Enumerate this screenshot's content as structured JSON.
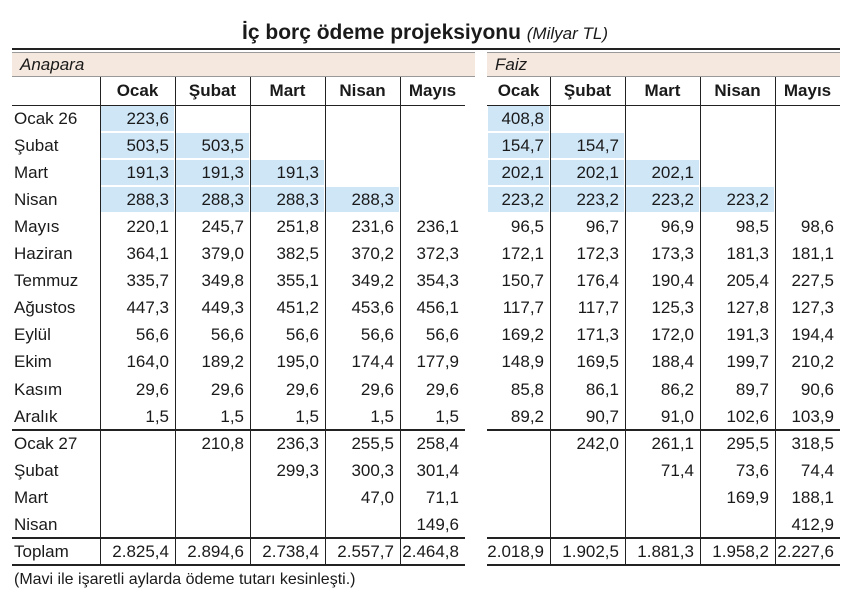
{
  "title": "İç borç ödeme projeksiyonu",
  "unit": "(Milyar TL)",
  "sections": [
    "Anapara",
    "Faiz"
  ],
  "columns": [
    "Ocak",
    "Şubat",
    "Mart",
    "Nisan",
    "Mayıs"
  ],
  "rows": [
    {
      "label": "Ocak 26",
      "anapara": [
        "223,6",
        null,
        null,
        null,
        null
      ],
      "faiz": [
        "408,8",
        null,
        null,
        null,
        null
      ]
    },
    {
      "label": "Şubat",
      "anapara": [
        "503,5",
        "503,5",
        null,
        null,
        null
      ],
      "faiz": [
        "154,7",
        "154,7",
        null,
        null,
        null
      ]
    },
    {
      "label": "Mart",
      "anapara": [
        "191,3",
        "191,3",
        "191,3",
        null,
        null
      ],
      "faiz": [
        "202,1",
        "202,1",
        "202,1",
        null,
        null
      ]
    },
    {
      "label": "Nisan",
      "anapara": [
        "288,3",
        "288,3",
        "288,3",
        "288,3",
        null
      ],
      "faiz": [
        "223,2",
        "223,2",
        "223,2",
        "223,2",
        null
      ]
    },
    {
      "label": "Mayıs",
      "anapara": [
        "220,1",
        "245,7",
        "251,8",
        "231,6",
        "236,1"
      ],
      "faiz": [
        "96,5",
        "96,7",
        "96,9",
        "98,5",
        "98,6"
      ]
    },
    {
      "label": "Haziran",
      "anapara": [
        "364,1",
        "379,0",
        "382,5",
        "370,2",
        "372,3"
      ],
      "faiz": [
        "172,1",
        "172,3",
        "173,3",
        "181,3",
        "181,1"
      ]
    },
    {
      "label": "Temmuz",
      "anapara": [
        "335,7",
        "349,8",
        "355,1",
        "349,2",
        "354,3"
      ],
      "faiz": [
        "150,7",
        "176,4",
        "190,4",
        "205,4",
        "227,5"
      ]
    },
    {
      "label": "Ağustos",
      "anapara": [
        "447,3",
        "449,3",
        "451,2",
        "453,6",
        "456,1"
      ],
      "faiz": [
        "117,7",
        "117,7",
        "125,3",
        "127,8",
        "127,3"
      ]
    },
    {
      "label": "Eylül",
      "anapara": [
        "56,6",
        "56,6",
        "56,6",
        "56,6",
        "56,6"
      ],
      "faiz": [
        "169,2",
        "171,3",
        "172,0",
        "191,3",
        "194,4"
      ]
    },
    {
      "label": "Ekim",
      "anapara": [
        "164,0",
        "189,2",
        "195,0",
        "174,4",
        "177,9"
      ],
      "faiz": [
        "148,9",
        "169,5",
        "188,4",
        "199,7",
        "210,2"
      ]
    },
    {
      "label": "Kasım",
      "anapara": [
        "29,6",
        "29,6",
        "29,6",
        "29,6",
        "29,6"
      ],
      "faiz": [
        "85,8",
        "86,1",
        "86,2",
        "89,7",
        "90,6"
      ]
    },
    {
      "label": "Aralık",
      "anapara": [
        "1,5",
        "1,5",
        "1,5",
        "1,5",
        "1,5"
      ],
      "faiz": [
        "89,2",
        "90,7",
        "91,0",
        "102,6",
        "103,9"
      ]
    },
    {
      "label": "Ocak 27",
      "anapara": [
        null,
        "210,8",
        "236,3",
        "255,5",
        "258,4"
      ],
      "faiz": [
        null,
        "242,0",
        "261,1",
        "295,5",
        "318,5"
      ]
    },
    {
      "label": "Şubat",
      "anapara": [
        null,
        null,
        "299,3",
        "300,3",
        "301,4"
      ],
      "faiz": [
        null,
        null,
        "71,4",
        "73,6",
        "74,4"
      ]
    },
    {
      "label": "Mart",
      "anapara": [
        null,
        null,
        null,
        "47,0",
        "71,1"
      ],
      "faiz": [
        null,
        null,
        null,
        "169,9",
        "188,1"
      ]
    },
    {
      "label": "Nisan",
      "anapara": [
        null,
        null,
        null,
        null,
        "149,6"
      ],
      "faiz": [
        null,
        null,
        null,
        null,
        "412,9"
      ]
    },
    {
      "label": "Toplam",
      "anapara": [
        "2.825,4",
        "2.894,6",
        "2.738,4",
        "2.557,7",
        "2.464,8"
      ],
      "faiz": [
        "2.018,9",
        "1.902,5",
        "1.881,3",
        "1.958,2",
        "2.227,6"
      ]
    }
  ],
  "footnote": "(Mavi ile işaretli aylarda ödeme tutarı kesinleşti.)"
}
